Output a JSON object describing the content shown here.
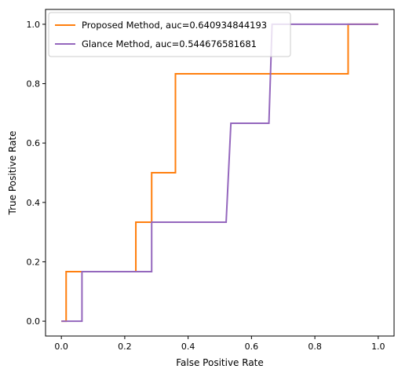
{
  "chart_data": {
    "type": "line",
    "title": "",
    "xlabel": "False Positive Rate",
    "ylabel": "True Positive Rate",
    "xlim": [
      -0.05,
      1.05
    ],
    "ylim": [
      -0.05,
      1.05
    ],
    "xticks": [
      "0.0",
      "0.2",
      "0.4",
      "0.6",
      "0.8",
      "1.0"
    ],
    "yticks": [
      "0.0",
      "0.2",
      "0.4",
      "0.6",
      "0.8",
      "1.0"
    ],
    "grid": false,
    "legend_position": "upper-left",
    "series": [
      {
        "name": "Proposed Method, auc=0.640934844193",
        "color": "#ff7f0e",
        "x": [
          0.0,
          0.015,
          0.015,
          0.235,
          0.235,
          0.285,
          0.285,
          0.36,
          0.36,
          0.905,
          0.905,
          1.0
        ],
        "y": [
          0.0,
          0.0,
          0.1667,
          0.1667,
          0.3333,
          0.3333,
          0.5,
          0.5,
          0.8333,
          0.8333,
          1.0,
          1.0
        ]
      },
      {
        "name": "Glance Method, auc=0.544676581681",
        "color": "#9467bd",
        "x": [
          0.0,
          0.065,
          0.065,
          0.285,
          0.285,
          0.52,
          0.535,
          0.655,
          0.665,
          1.0
        ],
        "y": [
          0.0,
          0.0,
          0.1667,
          0.1667,
          0.3333,
          0.3333,
          0.6667,
          0.6667,
          1.0,
          1.0
        ]
      }
    ]
  }
}
